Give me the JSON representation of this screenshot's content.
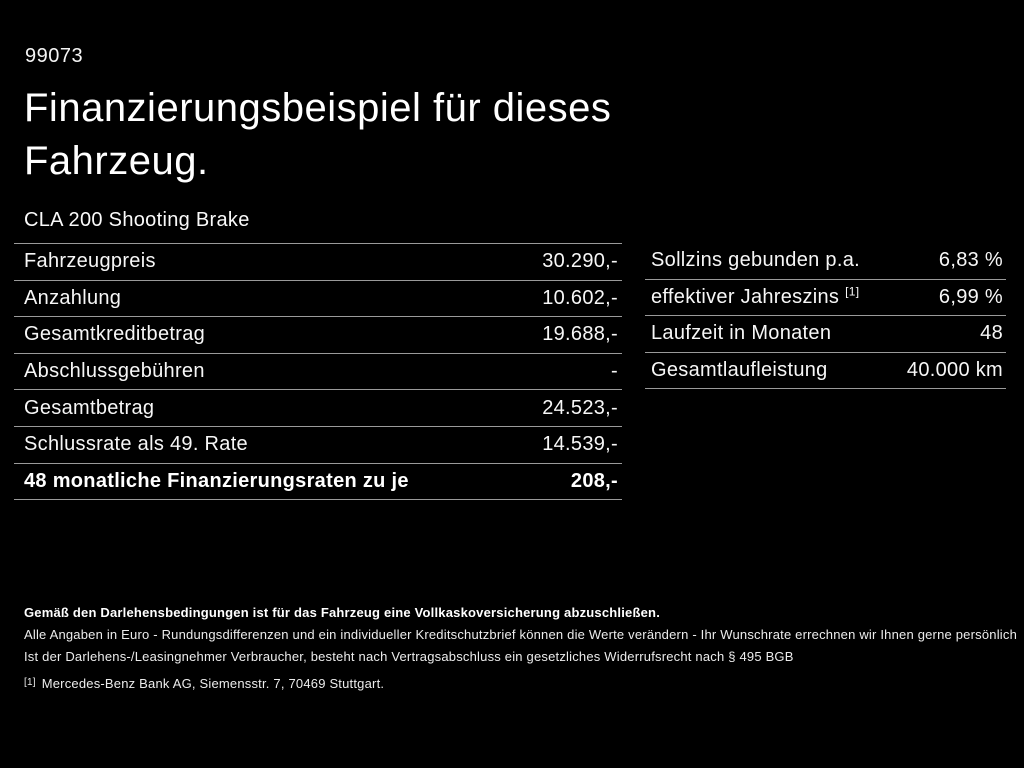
{
  "page": {
    "doc_number": "99073",
    "title": "Finanzierungsbeispiel für dieses Fahrzeug.",
    "vehicle_model": "CLA 200 Shooting Brake"
  },
  "left_table": {
    "rows": [
      {
        "label": "Fahrzeugpreis",
        "value": "30.290,-"
      },
      {
        "label": "Anzahlung",
        "value": "10.602,-"
      },
      {
        "label": "Gesamtkreditbetrag",
        "value": "19.688,-"
      },
      {
        "label": "Abschlussgebühren",
        "value": "-"
      },
      {
        "label": "Gesamtbetrag",
        "value": "24.523,-"
      },
      {
        "label": "Schlussrate als 49. Rate",
        "value": "14.539,-"
      },
      {
        "label": "48 monatliche Finanzierungsraten zu je",
        "value": "208,-"
      }
    ]
  },
  "right_table": {
    "rows": [
      {
        "label": "Sollzins gebunden p.a.",
        "value": "6,83 %"
      },
      {
        "label": "effektiver Jahreszins",
        "sup": "[1]",
        "value": "6,99 %"
      },
      {
        "label": "Laufzeit in Monaten",
        "value": "48"
      },
      {
        "label": "Gesamtlaufleistung",
        "value": "40.000 km"
      }
    ]
  },
  "footer": {
    "line1": "Gemäß den Darlehensbedingungen ist für das Fahrzeug eine Vollkaskoversicherung abzuschließen.",
    "line2": "Alle Angaben in Euro - Rundungsdifferenzen und ein individueller Kreditschutzbrief können die Werte verändern - Ihr Wunschrate errechnen wir Ihnen gerne persönlich",
    "line3": "Ist der Darlehens-/Leasingnehmer Verbraucher, besteht nach Vertragsabschluss ein gesetzliches Widerrufsrecht nach § 495 BGB",
    "footnote_marker": "[1]",
    "footnote_text": "Mercedes-Benz Bank AG, Siemensstr. 7, 70469 Stuttgart."
  },
  "colors": {
    "background": "#000000",
    "text": "#ffffff",
    "divider": "#9a9a9a"
  }
}
